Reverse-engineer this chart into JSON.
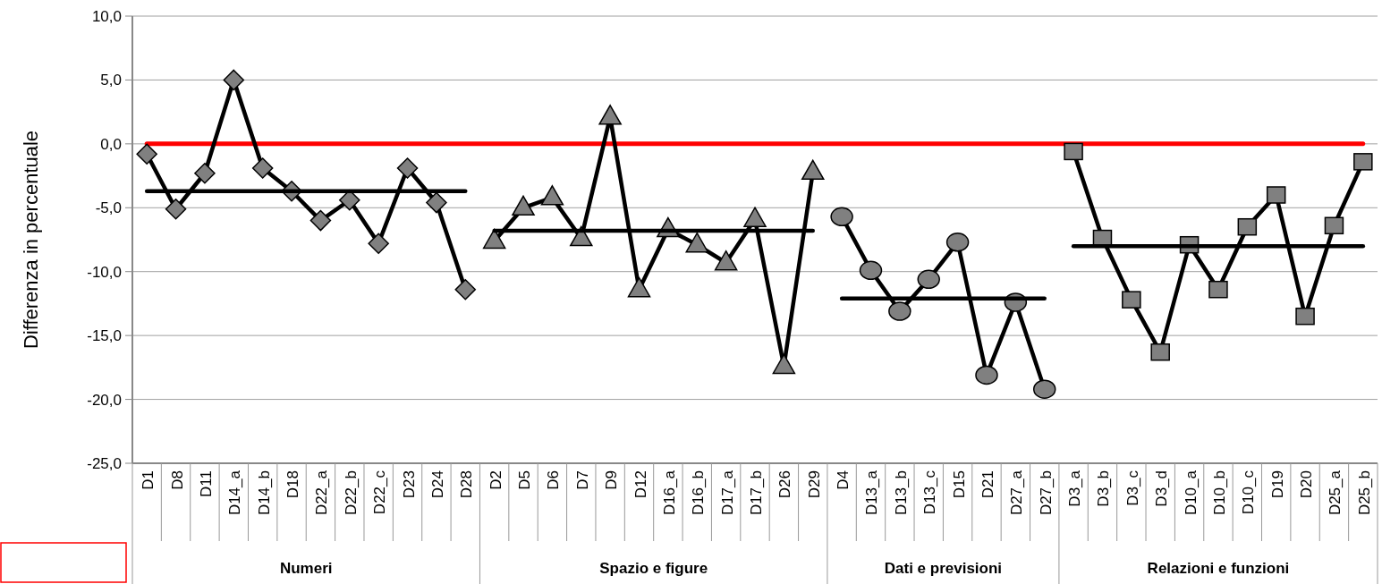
{
  "chart_data": {
    "type": "line",
    "ylabel": "Differenza in percentuale",
    "categories": [
      "D1",
      "D8",
      "D11",
      "D14_a",
      "D14_b",
      "D18",
      "D22_a",
      "D22_b",
      "D22_c",
      "D23",
      "D24",
      "D28",
      "D2",
      "D5",
      "D6",
      "D7",
      "D9",
      "D12",
      "D16_a",
      "D16_b",
      "D17_a",
      "D17_b",
      "D26",
      "D29",
      "D4",
      "D13_a",
      "D13_b",
      "D13_c",
      "D15",
      "D21",
      "D27_a",
      "D27_b",
      "D3_a",
      "D3_b",
      "D3_c",
      "D3_d",
      "D10_a",
      "D10_b",
      "D10_c",
      "D19",
      "D20",
      "D25_a",
      "D25_b"
    ],
    "series": [
      {
        "color": "#000000",
        "marker": "diamond",
        "values": [
          -0.8,
          -5.1,
          -2.3,
          5.0,
          -1.9,
          -3.7,
          -6.0,
          -4.4,
          -7.8,
          -1.9,
          -4.6,
          -11.4,
          null,
          null,
          null,
          null,
          null,
          null,
          null,
          null,
          null,
          null,
          null,
          null,
          null,
          null,
          null,
          null,
          null,
          null,
          null,
          null,
          null,
          null,
          null,
          null,
          null,
          null,
          null,
          null,
          null,
          null,
          null
        ]
      },
      {
        "color": "#000000",
        "marker": "triangle",
        "values": [
          null,
          null,
          null,
          null,
          null,
          null,
          null,
          null,
          null,
          null,
          null,
          null,
          -7.6,
          -5.0,
          -4.2,
          -7.4,
          2.1,
          -11.4,
          -6.7,
          -7.9,
          -9.3,
          -5.9,
          -17.4,
          -2.2,
          null,
          null,
          null,
          null,
          null,
          null,
          null,
          null,
          null,
          null,
          null,
          null,
          null,
          null,
          null,
          null,
          null,
          null,
          null
        ]
      },
      {
        "color": "#000000",
        "marker": "circle",
        "values": [
          null,
          null,
          null,
          null,
          null,
          null,
          null,
          null,
          null,
          null,
          null,
          null,
          null,
          null,
          null,
          null,
          null,
          null,
          null,
          null,
          null,
          null,
          null,
          null,
          -5.7,
          -9.9,
          -13.1,
          -10.6,
          -7.7,
          -18.1,
          -12.4,
          -19.2,
          null,
          null,
          null,
          null,
          null,
          null,
          null,
          null,
          null,
          null,
          null
        ]
      },
      {
        "color": "#000000",
        "marker": "square",
        "values": [
          null,
          null,
          null,
          null,
          null,
          null,
          null,
          null,
          null,
          null,
          null,
          null,
          null,
          null,
          null,
          null,
          null,
          null,
          null,
          null,
          null,
          null,
          null,
          null,
          null,
          null,
          null,
          null,
          null,
          null,
          null,
          null,
          -0.6,
          -7.4,
          -12.2,
          -16.3,
          -7.9,
          -11.4,
          -6.5,
          -4.0,
          -13.5,
          -6.4,
          -1.4
        ]
      },
      {
        "color": "#000000",
        "marker": "none",
        "values": [
          -3.7,
          -3.7,
          -3.7,
          -3.7,
          -3.7,
          -3.7,
          -3.7,
          -3.7,
          -3.7,
          -3.7,
          -3.7,
          -3.7,
          null,
          null,
          null,
          null,
          null,
          null,
          null,
          null,
          null,
          null,
          null,
          null,
          null,
          null,
          null,
          null,
          null,
          null,
          null,
          null,
          null,
          null,
          null,
          null,
          null,
          null,
          null,
          null,
          null,
          null,
          null
        ]
      },
      {
        "color": "#000000",
        "marker": "none",
        "values": [
          null,
          null,
          null,
          null,
          null,
          null,
          null,
          null,
          null,
          null,
          null,
          null,
          -6.8,
          -6.8,
          -6.8,
          -6.8,
          -6.8,
          -6.8,
          -6.8,
          -6.8,
          -6.8,
          -6.8,
          -6.8,
          -6.8,
          null,
          null,
          null,
          null,
          null,
          null,
          null,
          null,
          null,
          null,
          null,
          null,
          null,
          null,
          null,
          null,
          null,
          null,
          null
        ]
      },
      {
        "color": "#000000",
        "marker": "none",
        "values": [
          null,
          null,
          null,
          null,
          null,
          null,
          null,
          null,
          null,
          null,
          null,
          null,
          null,
          null,
          null,
          null,
          null,
          null,
          null,
          null,
          null,
          null,
          null,
          null,
          -12.1,
          -12.1,
          -12.1,
          -12.1,
          -12.1,
          -12.1,
          -12.1,
          -12.1,
          null,
          null,
          null,
          null,
          null,
          null,
          null,
          null,
          null,
          null,
          null
        ]
      },
      {
        "color": "#000000",
        "marker": "none",
        "values": [
          null,
          null,
          null,
          null,
          null,
          null,
          null,
          null,
          null,
          null,
          null,
          null,
          null,
          null,
          null,
          null,
          null,
          null,
          null,
          null,
          null,
          null,
          null,
          null,
          null,
          null,
          null,
          null,
          null,
          null,
          null,
          null,
          -8.0,
          -8.0,
          -8.0,
          -8.0,
          -8.0,
          -8.0,
          -8.0,
          -8.0,
          -8.0,
          -8.0,
          -8.0
        ]
      }
    ],
    "annotations": [
      "Numeri",
      "Spazio e figure",
      "Dati e previsioni",
      "Relazioni e funzioni"
    ],
    "ref_lines": [
      {
        "axis": "y",
        "value": 0,
        "color": "#ff0000"
      }
    ],
    "ylim": [
      -25,
      10
    ],
    "yticks": [
      {
        "value": -25,
        "label": "-25,0"
      },
      {
        "value": -20,
        "label": "-20,0"
      },
      {
        "value": -15,
        "label": "-15,0"
      },
      {
        "value": -10,
        "label": "-10,0"
      },
      {
        "value": -5,
        "label": "-5,0"
      },
      {
        "value": 0,
        "label": "0,0"
      },
      {
        "value": 5,
        "label": "5,0"
      },
      {
        "value": 10,
        "label": "10,0"
      }
    ],
    "grid": "y"
  }
}
